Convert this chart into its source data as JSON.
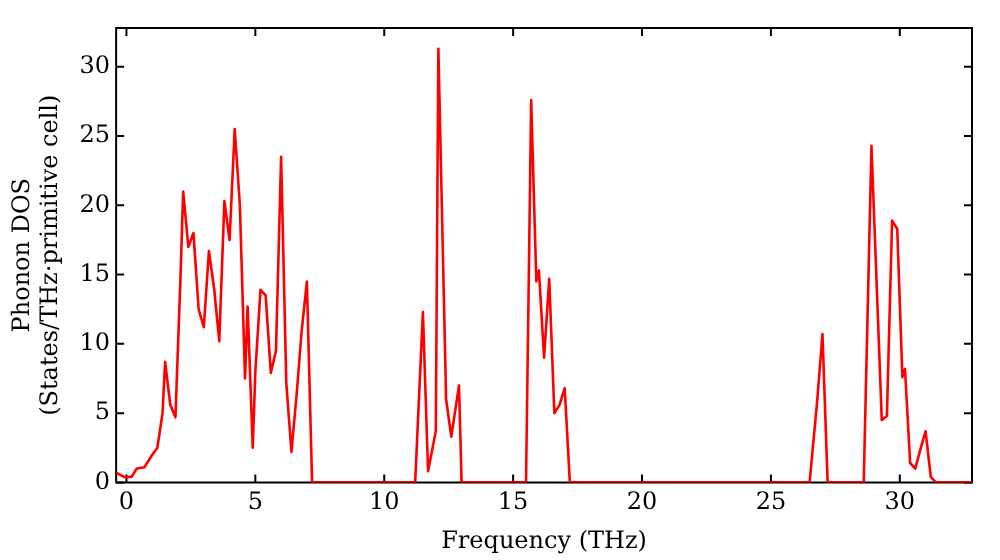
{
  "chart_data": {
    "type": "line",
    "xlabel": "Frequency (THz)",
    "ylabel": "Phonon DOS\n(States/THz·primitive cell)",
    "x": [
      -0.4,
      -0.1,
      0.2,
      0.4,
      0.7,
      1.0,
      1.2,
      1.4,
      1.5,
      1.7,
      1.9,
      2.1,
      2.2,
      2.4,
      2.6,
      2.8,
      3.0,
      3.2,
      3.4,
      3.6,
      3.8,
      4.0,
      4.2,
      4.4,
      4.6,
      4.7,
      4.9,
      5.0,
      5.2,
      5.4,
      5.6,
      5.8,
      6.0,
      6.2,
      6.4,
      6.6,
      6.8,
      7.0,
      7.2,
      11.2,
      11.5,
      11.7,
      12.0,
      12.1,
      12.4,
      12.6,
      12.9,
      13.0,
      15.5,
      15.7,
      15.9,
      16.0,
      16.2,
      16.4,
      16.6,
      16.8,
      17.0,
      17.2,
      26.5,
      26.8,
      27.0,
      27.2,
      28.6,
      28.9,
      29.3,
      29.5,
      29.7,
      29.9,
      30.1,
      30.2,
      30.4,
      30.6,
      30.8,
      31.0,
      31.2,
      31.4,
      32.8
    ],
    "series": [
      {
        "color": "#ff0000",
        "values": [
          0.7,
          0.4,
          0.4,
          1.0,
          1.1,
          2.0,
          2.5,
          5.0,
          8.7,
          5.6,
          4.7,
          15,
          21,
          17,
          18,
          12.5,
          11.2,
          16.7,
          14,
          10.2,
          20.3,
          17.5,
          25.5,
          20,
          7.5,
          12.7,
          2.5,
          8,
          13.9,
          13.5,
          7.9,
          9.5,
          23.5,
          7.2,
          2.2,
          6.3,
          11,
          14.5,
          0,
          0,
          12.3,
          0.8,
          3.7,
          31.3,
          6,
          3.3,
          7,
          0,
          0,
          27.6,
          14.5,
          15.3,
          9,
          14.7,
          5,
          5.6,
          6.8,
          0,
          0,
          6.0,
          10.7,
          0,
          0,
          24.3,
          4.5,
          4.8,
          18.9,
          18.3,
          7.6,
          8.2,
          1.4,
          1.0,
          2.4,
          3.7,
          0.4,
          0,
          0
        ]
      }
    ],
    "xlim": [
      -0.4,
      32.8
    ],
    "xticks": [
      0,
      5,
      10,
      15,
      20,
      25,
      30
    ],
    "ylim": [
      0,
      32.8
    ],
    "yticks": [
      0,
      5,
      10,
      15,
      20,
      25,
      30
    ],
    "grid": false,
    "legend": false,
    "marker": "none",
    "line_style": "solid"
  }
}
